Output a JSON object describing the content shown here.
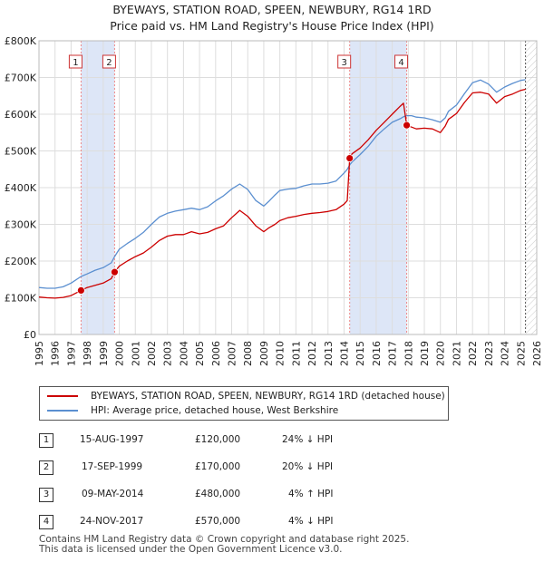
{
  "title_line1": "BYEWAYS, STATION ROAD, SPEEN, NEWBURY, RG14 1RD",
  "title_line2": "Price paid vs. HM Land Registry's House Price Index (HPI)",
  "colors": {
    "property": "#cc0000",
    "hpi": "#5b8fd0",
    "band": "#dde6f7",
    "grid": "#dddddd",
    "marker_line": "#e88"
  },
  "chart_data": {
    "type": "line",
    "xlim": [
      1995,
      2026
    ],
    "ylim": [
      0,
      800000
    ],
    "x_ticks": [
      "1995",
      "1996",
      "1997",
      "1998",
      "1999",
      "2000",
      "2001",
      "2002",
      "2003",
      "2004",
      "2005",
      "2006",
      "2007",
      "2008",
      "2009",
      "2010",
      "2011",
      "2012",
      "2013",
      "2014",
      "2015",
      "2016",
      "2017",
      "2018",
      "2019",
      "2020",
      "2021",
      "2022",
      "2023",
      "2024",
      "2025",
      "2026"
    ],
    "y_ticks": [
      {
        "value": 0,
        "label": "£0"
      },
      {
        "value": 100000,
        "label": "£100K"
      },
      {
        "value": 200000,
        "label": "£200K"
      },
      {
        "value": 300000,
        "label": "£300K"
      },
      {
        "value": 400000,
        "label": "£400K"
      },
      {
        "value": 500000,
        "label": "£500K"
      },
      {
        "value": 600000,
        "label": "£600K"
      },
      {
        "value": 700000,
        "label": "£700K"
      },
      {
        "value": 800000,
        "label": "£800K"
      }
    ],
    "series": [
      {
        "name": "BYEWAYS, STATION ROAD, SPEEN, NEWBURY, RG14 1RD (detached house)",
        "color": "#cc0000",
        "x": [
          1995.0,
          1995.5,
          1996.0,
          1996.5,
          1997.0,
          1997.62,
          1998.0,
          1998.5,
          1999.0,
          1999.5,
          1999.71,
          2000.0,
          2000.5,
          2001.0,
          2001.5,
          2002.0,
          2002.5,
          2003.0,
          2003.5,
          2004.0,
          2004.5,
          2005.0,
          2005.5,
          2006.0,
          2006.5,
          2007.0,
          2007.5,
          2008.0,
          2008.5,
          2009.0,
          2009.3,
          2009.7,
          2010.0,
          2010.5,
          2011.0,
          2011.5,
          2012.0,
          2012.5,
          2013.0,
          2013.5,
          2014.0,
          2014.2,
          2014.35,
          2014.5,
          2015.0,
          2015.5,
          2016.0,
          2016.5,
          2017.0,
          2017.5,
          2017.7,
          2017.9,
          2018.2,
          2018.5,
          2019.0,
          2019.5,
          2020.0,
          2020.3,
          2020.5,
          2021.0,
          2021.5,
          2022.0,
          2022.5,
          2023.0,
          2023.5,
          2024.0,
          2024.5,
          2025.0,
          2025.3
        ],
        "y": [
          102000,
          100000,
          99000,
          101000,
          106000,
          120000,
          128000,
          134000,
          140000,
          152000,
          170000,
          186000,
          200000,
          212000,
          222000,
          238000,
          256000,
          268000,
          272000,
          272000,
          280000,
          274000,
          278000,
          288000,
          296000,
          318000,
          338000,
          322000,
          296000,
          280000,
          290000,
          300000,
          310000,
          318000,
          322000,
          327000,
          330000,
          332000,
          335000,
          340000,
          355000,
          365000,
          480000,
          492000,
          508000,
          530000,
          556000,
          578000,
          600000,
          622000,
          630000,
          570000,
          565000,
          560000,
          562000,
          560000,
          550000,
          568000,
          586000,
          602000,
          632000,
          658000,
          660000,
          655000,
          630000,
          648000,
          655000,
          665000,
          668000
        ]
      },
      {
        "name": "HPI: Average price, detached house, West Berkshire",
        "color": "#5b8fd0",
        "x": [
          1995.0,
          1995.5,
          1996.0,
          1996.5,
          1997.0,
          1997.62,
          1998.0,
          1998.5,
          1999.0,
          1999.5,
          1999.71,
          2000.0,
          2000.5,
          2001.0,
          2001.5,
          2002.0,
          2002.5,
          2003.0,
          2003.5,
          2004.0,
          2004.5,
          2005.0,
          2005.5,
          2006.0,
          2006.5,
          2007.0,
          2007.5,
          2008.0,
          2008.5,
          2009.0,
          2009.3,
          2009.7,
          2010.0,
          2010.5,
          2011.0,
          2011.5,
          2012.0,
          2012.5,
          2013.0,
          2013.5,
          2014.0,
          2014.2,
          2014.35,
          2014.5,
          2015.0,
          2015.5,
          2016.0,
          2016.5,
          2017.0,
          2017.5,
          2017.7,
          2017.9,
          2018.2,
          2018.5,
          2019.0,
          2019.5,
          2020.0,
          2020.3,
          2020.5,
          2021.0,
          2021.5,
          2022.0,
          2022.5,
          2023.0,
          2023.5,
          2024.0,
          2024.5,
          2025.0,
          2025.3
        ],
        "y": [
          128000,
          126000,
          126000,
          130000,
          140000,
          158000,
          165000,
          175000,
          182000,
          195000,
          212000,
          232000,
          248000,
          262000,
          278000,
          300000,
          320000,
          330000,
          336000,
          340000,
          344000,
          340000,
          348000,
          364000,
          378000,
          396000,
          410000,
          395000,
          365000,
          350000,
          362000,
          380000,
          392000,
          396000,
          398000,
          405000,
          410000,
          410000,
          412000,
          418000,
          440000,
          450000,
          462000,
          470000,
          490000,
          512000,
          540000,
          560000,
          578000,
          588000,
          593000,
          596000,
          596000,
          592000,
          590000,
          585000,
          578000,
          590000,
          608000,
          625000,
          656000,
          686000,
          693000,
          682000,
          660000,
          674000,
          684000,
          692000,
          694000
        ]
      }
    ],
    "sales": [
      {
        "id": "1",
        "x": 1997.62,
        "y": 120000
      },
      {
        "id": "2",
        "x": 1999.71,
        "y": 170000
      },
      {
        "id": "3",
        "x": 2014.35,
        "y": 480000
      },
      {
        "id": "4",
        "x": 2017.9,
        "y": 570000
      }
    ],
    "shaded_ranges": [
      [
        1997.62,
        1999.71
      ],
      [
        2014.35,
        2017.9
      ]
    ],
    "forecast_from": 2025.3
  },
  "legend": {
    "property_label": "BYEWAYS, STATION ROAD, SPEEN, NEWBURY, RG14 1RD (detached house)",
    "hpi_label": "HPI: Average price, detached house, West Berkshire"
  },
  "table": [
    {
      "id": "1",
      "date": "15-AUG-1997",
      "price": "£120,000",
      "delta": "24% ↓ HPI"
    },
    {
      "id": "2",
      "date": "17-SEP-1999",
      "price": "£170,000",
      "delta": "20% ↓ HPI"
    },
    {
      "id": "3",
      "date": "09-MAY-2014",
      "price": "£480,000",
      "delta": "4% ↑ HPI"
    },
    {
      "id": "4",
      "date": "24-NOV-2017",
      "price": "£570,000",
      "delta": "4% ↓ HPI"
    }
  ],
  "footer_line1": "Contains HM Land Registry data © Crown copyright and database right 2025.",
  "footer_line2": "This data is licensed under the Open Government Licence v3.0."
}
